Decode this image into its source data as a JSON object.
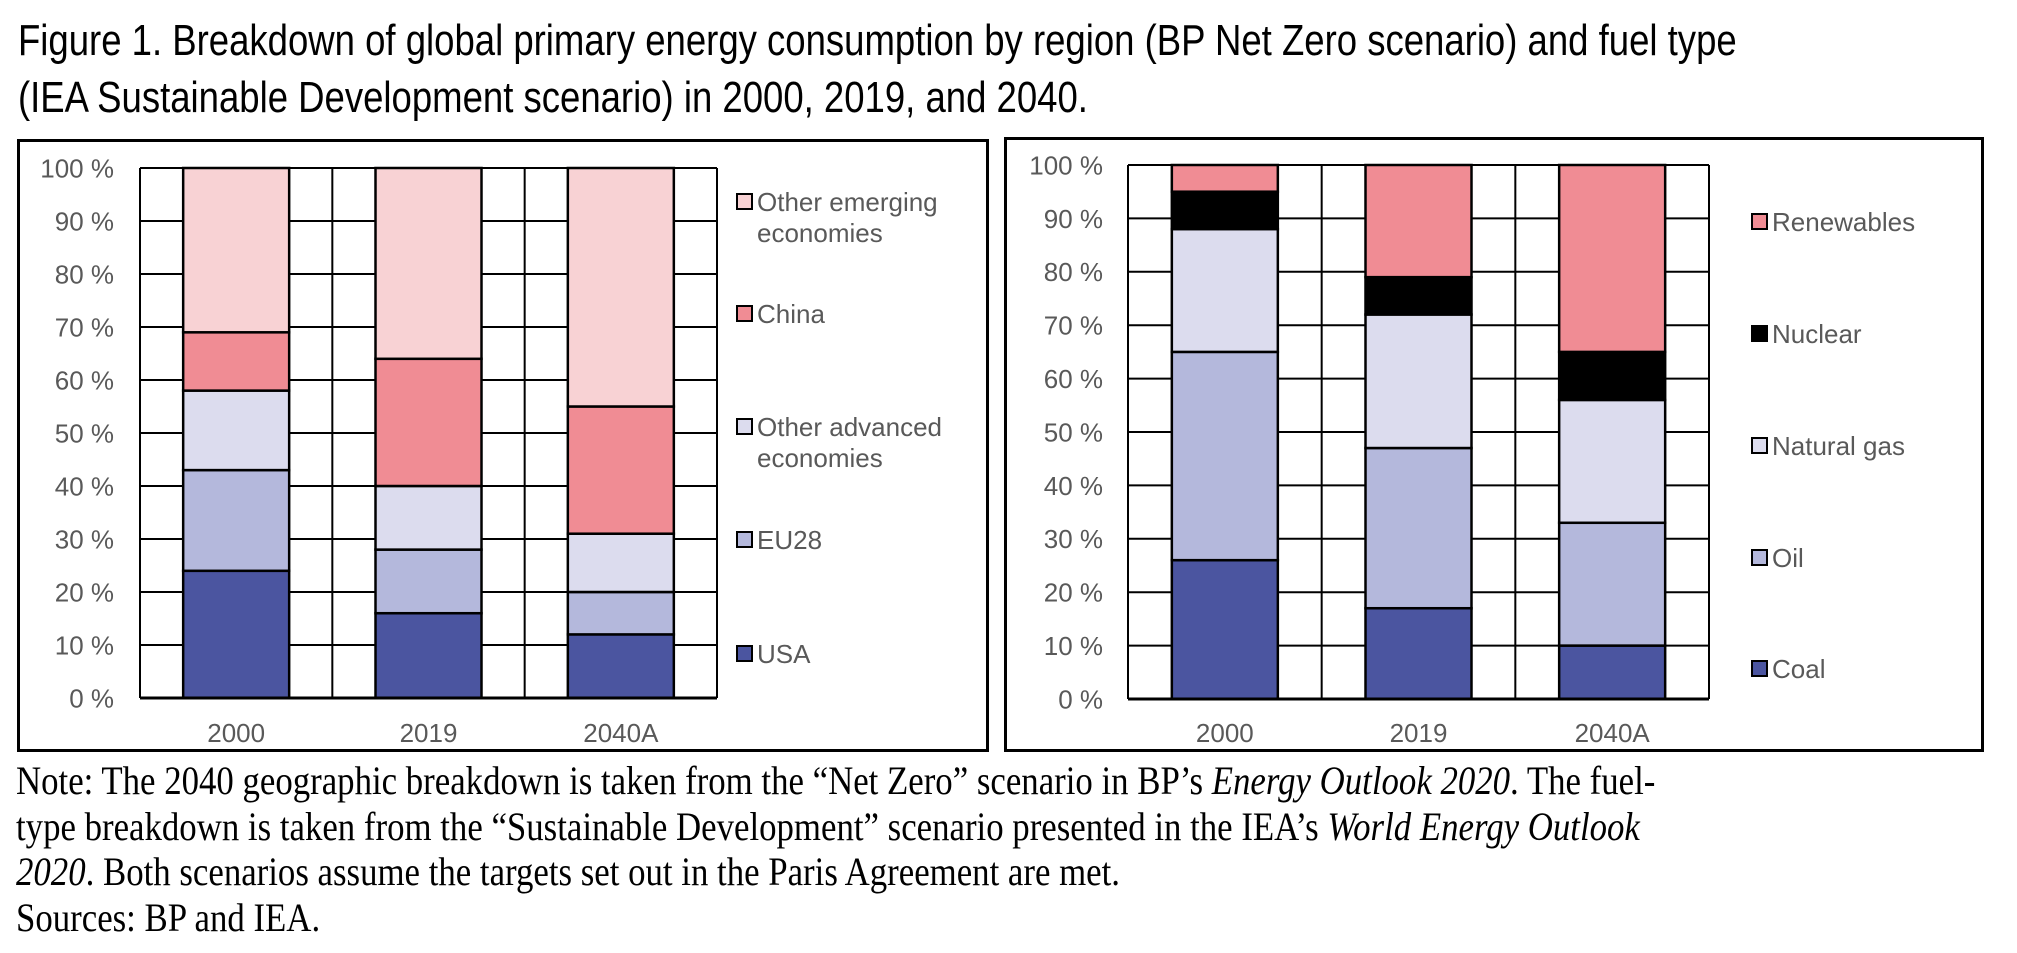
{
  "title": {
    "line1": "Figure 1. Breakdown of global primary energy consumption by region (BP Net Zero scenario) and fuel type",
    "line2": "(IEA Sustainable Development scenario) in 2000, 2019, and 2040."
  },
  "note": {
    "line1_a": "Note: The 2040 geographic breakdown is taken from the “Net Zero” scenario in BP’s ",
    "line1_italic": "Energy Outlook 2020",
    "line1_b": ". The fuel-",
    "line2_a": "type breakdown is taken from the “Sustainable Development” scenario presented in the IEA’s ",
    "line2_italic": "World Energy Outlook",
    "line3_italic": "2020",
    "line3_b": ". Both scenarios assume the targets set out in the Paris Agreement are met.",
    "sources": "Sources: BP and IEA."
  },
  "chart_data": [
    {
      "type": "bar",
      "stacked": true,
      "title": "",
      "xlabel": "",
      "ylabel": "",
      "ylim": [
        0,
        100
      ],
      "y_ticks": [
        "0 %",
        "10 %",
        "20 %",
        "30 %",
        "40 %",
        "50 %",
        "60 %",
        "70 %",
        "80 %",
        "90 %",
        "100 %"
      ],
      "grid": true,
      "legend_position": "right",
      "categories": [
        "2000",
        "2019",
        "2040A"
      ],
      "series": [
        {
          "name": "USA",
          "color": "#4B55A0",
          "values": [
            24,
            16,
            12
          ]
        },
        {
          "name": "EU28",
          "color": "#B4B8DC",
          "values": [
            19,
            12,
            8
          ]
        },
        {
          "name": "Other advanced economies",
          "color": "#DCDCEE",
          "values": [
            15,
            12,
            11
          ]
        },
        {
          "name": "China",
          "color": "#F08C94",
          "values": [
            11,
            24,
            24
          ]
        },
        {
          "name": "Other emerging economies",
          "color": "#F8D2D4",
          "values": [
            31,
            36,
            45
          ]
        }
      ],
      "legend_order": [
        "Other emerging economies",
        "China",
        "Other advanced economies",
        "EU28",
        "USA"
      ],
      "legend_lines": {
        "Other emerging economies": [
          "Other emerging",
          "economies"
        ],
        "China": [
          "China"
        ],
        "Other advanced economies": [
          "Other advanced",
          "economies"
        ],
        "EU28": [
          "EU28"
        ],
        "USA": [
          "USA"
        ]
      }
    },
    {
      "type": "bar",
      "stacked": true,
      "title": "",
      "xlabel": "",
      "ylabel": "",
      "ylim": [
        0,
        100
      ],
      "y_ticks": [
        "0 %",
        "10 %",
        "20 %",
        "30 %",
        "40 %",
        "50 %",
        "60 %",
        "70 %",
        "80 %",
        "90 %",
        "100 %"
      ],
      "grid": true,
      "legend_position": "right",
      "categories": [
        "2000",
        "2019",
        "2040A"
      ],
      "series": [
        {
          "name": "Coal",
          "color": "#4B55A0",
          "values": [
            26,
            17,
            10
          ]
        },
        {
          "name": "Oil",
          "color": "#B4B8DC",
          "values": [
            39,
            30,
            23
          ]
        },
        {
          "name": "Natural gas",
          "color": "#DCDCEE",
          "values": [
            23,
            25,
            23
          ]
        },
        {
          "name": "Nuclear",
          "color": "#000000",
          "values": [
            7,
            7,
            9
          ]
        },
        {
          "name": "Renewables",
          "color": "#F08C94",
          "values": [
            5,
            21,
            35
          ]
        }
      ],
      "legend_order": [
        "Renewables",
        "Nuclear",
        "Natural gas",
        "Oil",
        "Coal"
      ],
      "legend_lines": {
        "Renewables": [
          "Renewables"
        ],
        "Nuclear": [
          "Nuclear"
        ],
        "Natural gas": [
          "Natural gas"
        ],
        "Oil": [
          "Oil"
        ],
        "Coal": [
          "Coal"
        ]
      }
    }
  ]
}
